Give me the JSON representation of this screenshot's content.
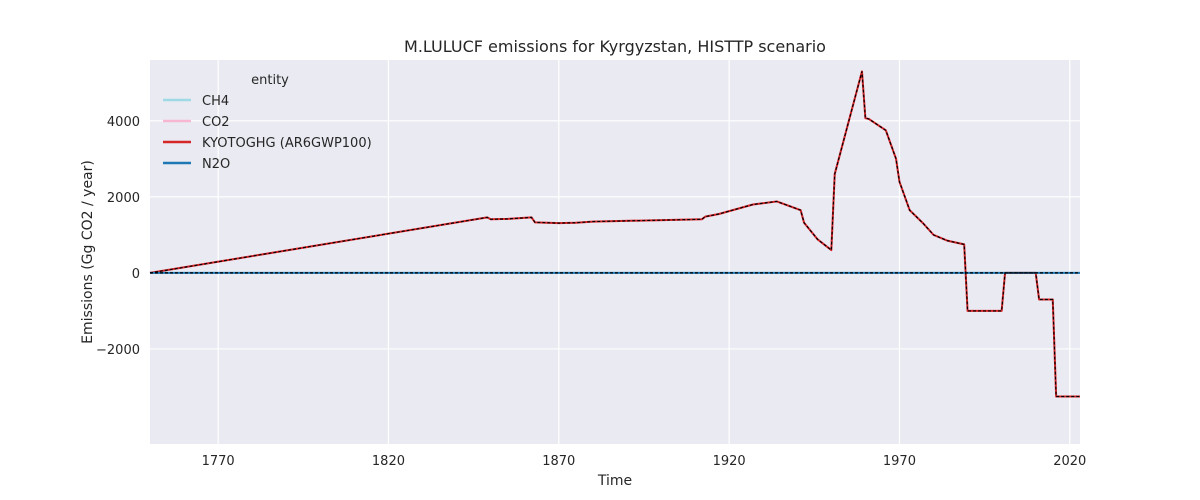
{
  "chart_data": {
    "type": "line",
    "title": "M.LULUCF emissions for Kyrgyzstan, HISTTP scenario",
    "xlabel": "Time",
    "ylabel": "Emissions (Gg CO2 / year)",
    "xlim": [
      1750,
      2023
    ],
    "ylim": [
      -4500,
      5600
    ],
    "xticks": [
      1770,
      1820,
      1870,
      1920,
      1970,
      2020
    ],
    "yticks": [
      -2000,
      0,
      2000,
      4000
    ],
    "ytick_labels": [
      "−2000",
      "0",
      "2000",
      "4000"
    ],
    "grid": true,
    "legend": {
      "title": "entity",
      "placement": "top-left"
    },
    "series": [
      {
        "name": "CH4",
        "color": "#9edae5",
        "style": "solid",
        "points": [
          [
            1750,
            0
          ],
          [
            2023,
            0
          ]
        ]
      },
      {
        "name": "CO2",
        "color": "#f7b6d2",
        "style": "solid",
        "points": [
          [
            1750,
            0
          ],
          [
            1849,
            1460
          ],
          [
            1850,
            1410
          ],
          [
            1855,
            1420
          ],
          [
            1862,
            1460
          ],
          [
            1863,
            1330
          ],
          [
            1870,
            1310
          ],
          [
            1875,
            1320
          ],
          [
            1880,
            1350
          ],
          [
            1912,
            1410
          ],
          [
            1913,
            1480
          ],
          [
            1917,
            1550
          ],
          [
            1927,
            1800
          ],
          [
            1934,
            1880
          ],
          [
            1941,
            1650
          ],
          [
            1942,
            1320
          ],
          [
            1946,
            880
          ],
          [
            1950,
            600
          ],
          [
            1951,
            2600
          ],
          [
            1959,
            5300
          ],
          [
            1960,
            4070
          ],
          [
            1961,
            4050
          ],
          [
            1966,
            3750
          ],
          [
            1969,
            3000
          ],
          [
            1970,
            2400
          ],
          [
            1973,
            1650
          ],
          [
            1977,
            1300
          ],
          [
            1980,
            1000
          ],
          [
            1984,
            850
          ],
          [
            1989,
            750
          ],
          [
            1990,
            -1000
          ],
          [
            2000,
            -1000
          ],
          [
            2001,
            0
          ],
          [
            2010,
            0
          ],
          [
            2011,
            -700
          ],
          [
            2015,
            -700
          ],
          [
            2016,
            -3250
          ],
          [
            2023,
            -3250
          ]
        ]
      },
      {
        "name": "KYOTOGHG (AR6GWP100)",
        "color": "#d62728",
        "style": "solid",
        "points": [
          [
            1750,
            0
          ],
          [
            1849,
            1460
          ],
          [
            1850,
            1410
          ],
          [
            1855,
            1420
          ],
          [
            1862,
            1460
          ],
          [
            1863,
            1330
          ],
          [
            1870,
            1310
          ],
          [
            1875,
            1320
          ],
          [
            1880,
            1350
          ],
          [
            1912,
            1410
          ],
          [
            1913,
            1480
          ],
          [
            1917,
            1550
          ],
          [
            1927,
            1800
          ],
          [
            1934,
            1880
          ],
          [
            1941,
            1650
          ],
          [
            1942,
            1320
          ],
          [
            1946,
            880
          ],
          [
            1950,
            600
          ],
          [
            1951,
            2600
          ],
          [
            1959,
            5300
          ],
          [
            1960,
            4070
          ],
          [
            1961,
            4050
          ],
          [
            1966,
            3750
          ],
          [
            1969,
            3000
          ],
          [
            1970,
            2400
          ],
          [
            1973,
            1650
          ],
          [
            1977,
            1300
          ],
          [
            1980,
            1000
          ],
          [
            1984,
            850
          ],
          [
            1989,
            750
          ],
          [
            1990,
            -1000
          ],
          [
            2000,
            -1000
          ],
          [
            2001,
            0
          ],
          [
            2010,
            0
          ],
          [
            2011,
            -700
          ],
          [
            2015,
            -700
          ],
          [
            2016,
            -3250
          ],
          [
            2023,
            -3250
          ]
        ]
      },
      {
        "name": "N2O",
        "color": "#1f77b4",
        "style": "solid",
        "points": [
          [
            1750,
            0
          ],
          [
            2023,
            0
          ]
        ]
      }
    ],
    "overlays": [
      {
        "style": "dashed",
        "color": "#000000",
        "follows": "KYOTOGHG (AR6GWP100)"
      },
      {
        "style": "dashed",
        "color": "#000000",
        "follows": "N2O"
      }
    ]
  }
}
